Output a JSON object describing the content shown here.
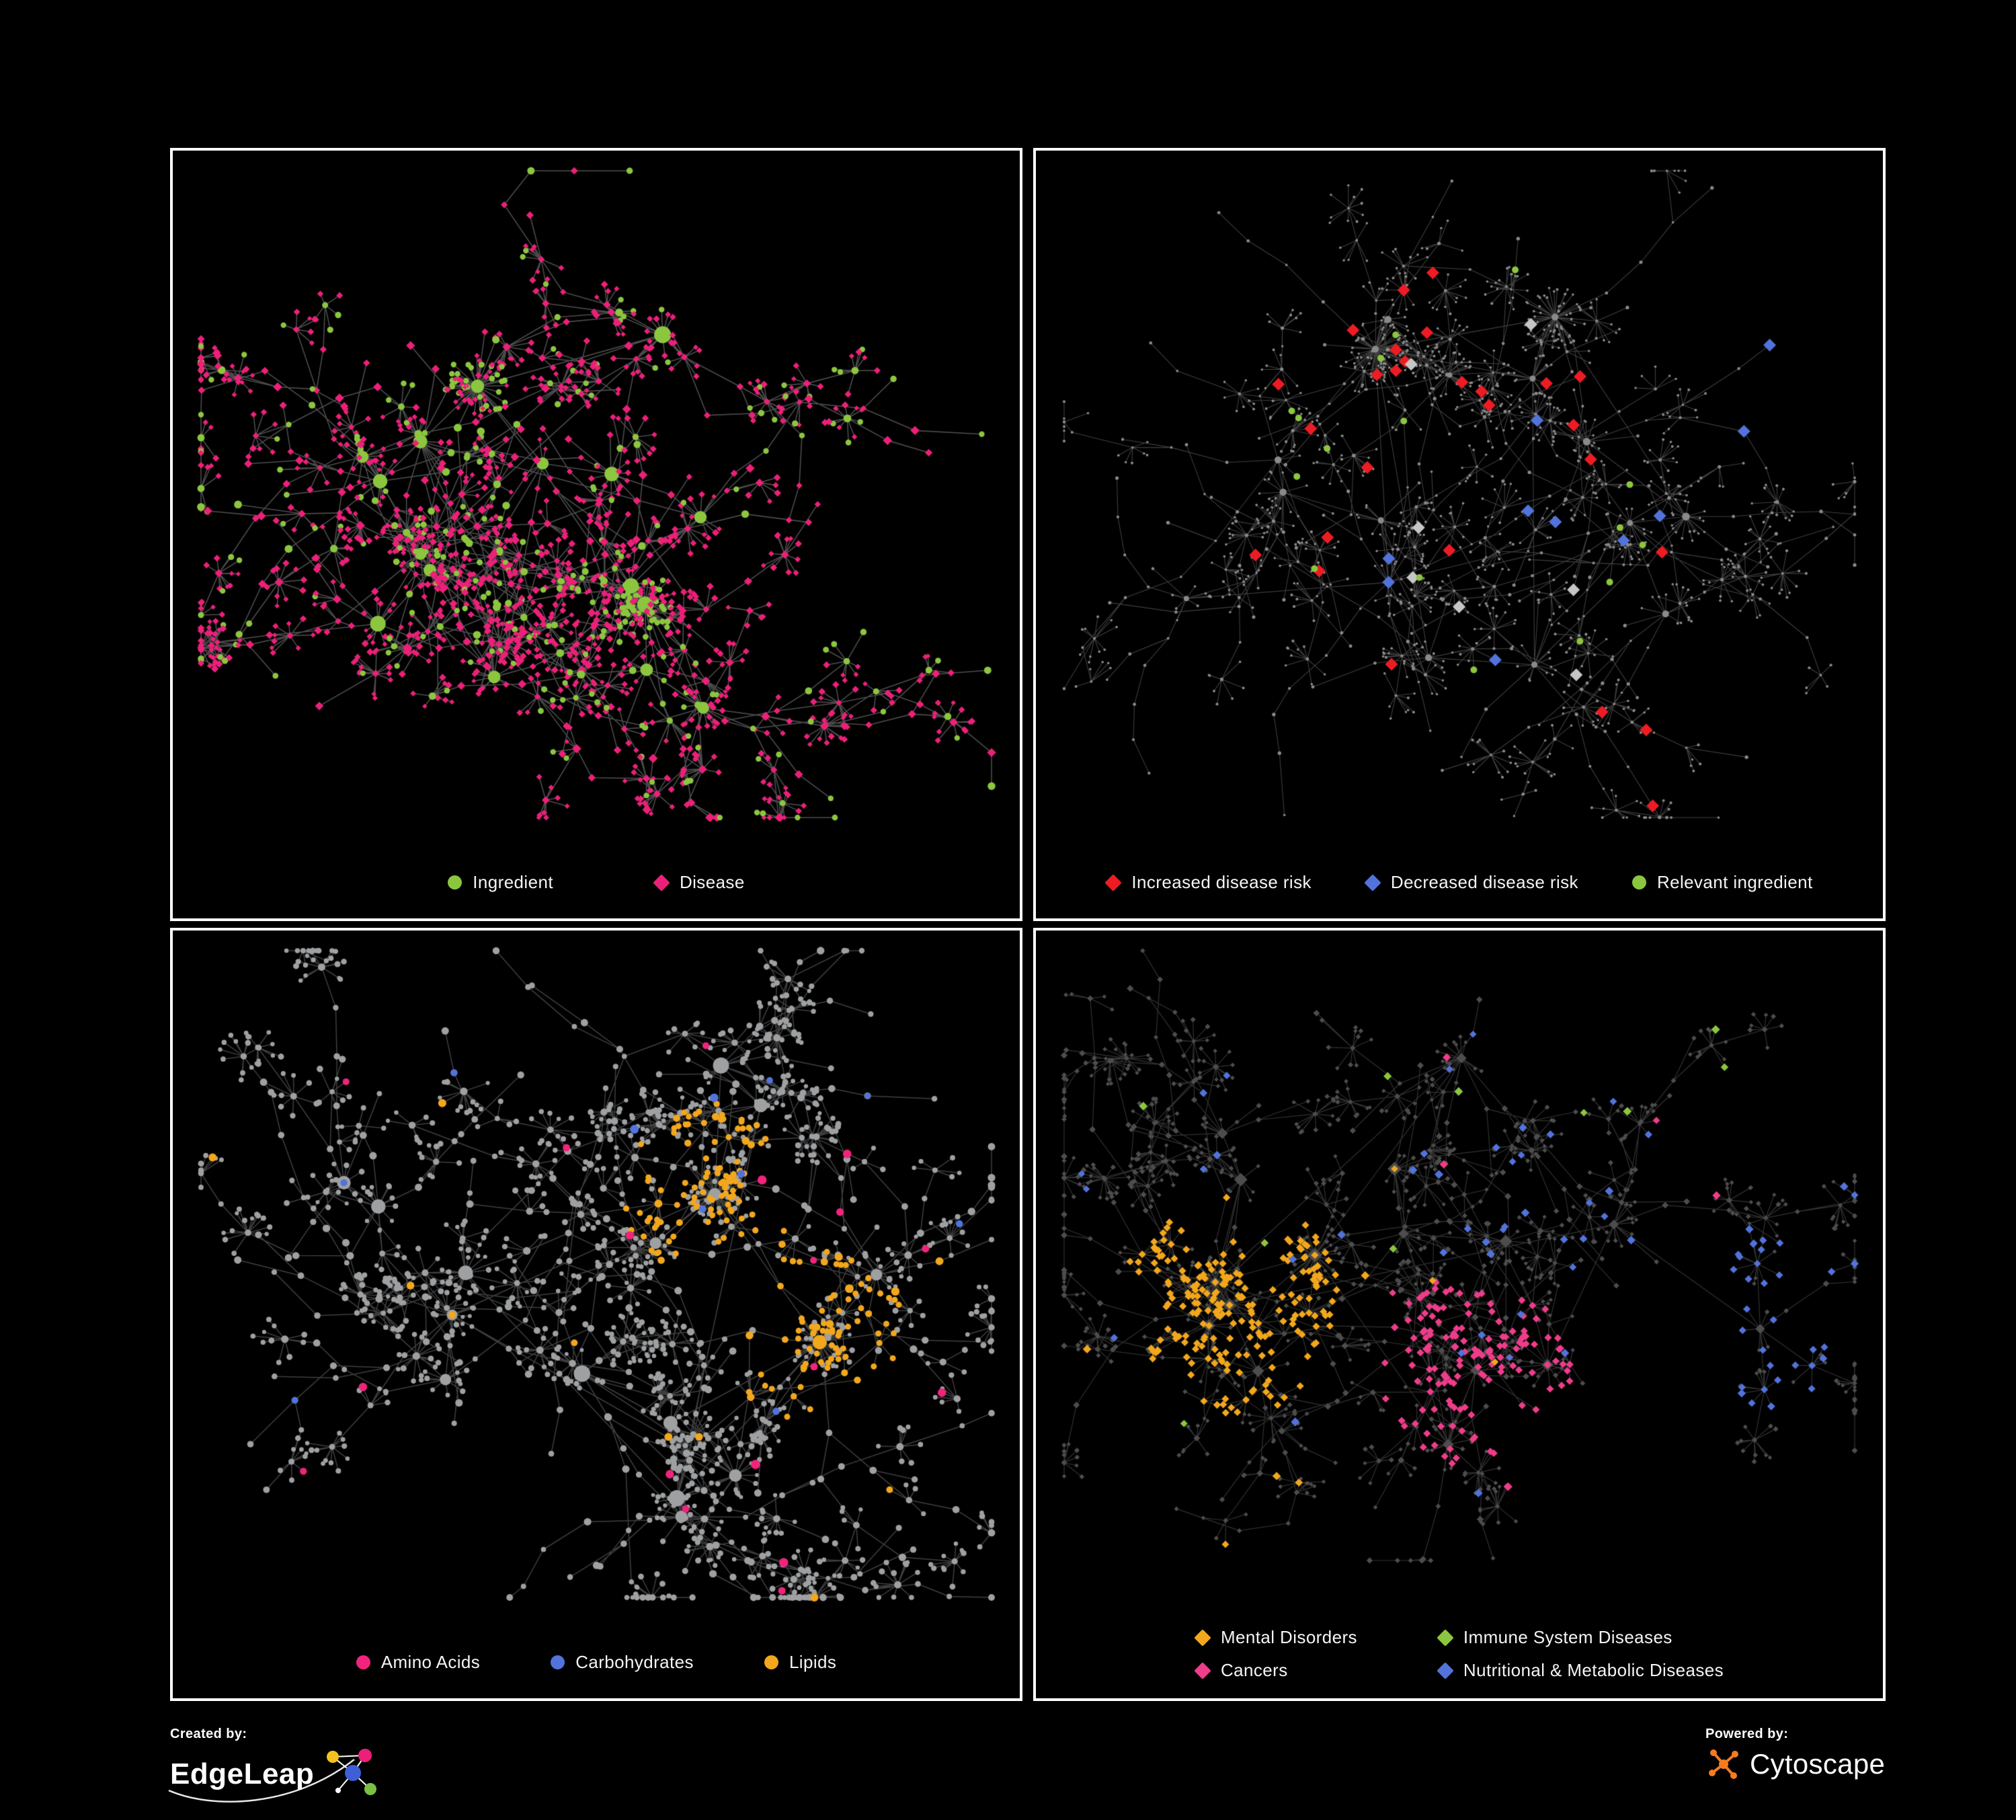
{
  "page": {
    "background": "#000000",
    "panel_border": "#ffffff"
  },
  "panels": [
    {
      "name": "ingredient-disease-network",
      "legend": [
        {
          "label": "Ingredient",
          "shape": "circle",
          "color": "#8cc63f"
        },
        {
          "label": "Disease",
          "shape": "diamond",
          "color": "#ec2079"
        }
      ],
      "network": {
        "seed": 1337,
        "style": "ingredient_disease",
        "edge_width": 1.6,
        "bottom_margin": 150,
        "colors": {
          "ingredient": "#8cc63f",
          "disease": "#ec2079",
          "edge": "rgba(152,152,152,0.5)"
        }
      }
    },
    {
      "name": "disease-risk-network",
      "legend": [
        {
          "label": "Increased disease risk",
          "shape": "diamond",
          "color": "#ed1c24"
        },
        {
          "label": "Decreased disease risk",
          "shape": "diamond",
          "color": "#5273db"
        },
        {
          "label": "Relevant ingredient",
          "shape": "circle",
          "color": "#8cc63f"
        }
      ],
      "network": {
        "seed": 2024,
        "style": "risk",
        "edge_width": 1.1,
        "bottom_margin": 150,
        "colors": {
          "increased": "#ed1c24",
          "decreased": "#5273db",
          "neutral": "#c6c6c6",
          "ingredient": "#8cc63f",
          "base": "#8a8a8a",
          "edge": "rgba(140,140,140,0.45)"
        }
      }
    },
    {
      "name": "macronutrient-network",
      "legend": [
        {
          "label": "Amino Acids",
          "shape": "circle",
          "color": "#f0247c"
        },
        {
          "label": "Carbohydrates",
          "shape": "circle",
          "color": "#5273db"
        },
        {
          "label": "Lipids",
          "shape": "circle",
          "color": "#f3a71c"
        }
      ],
      "network": {
        "seed": 7777,
        "style": "macronutrients",
        "edge_width": 1.5,
        "bottom_margin": 150,
        "colors": {
          "amino": "#f0247c",
          "carbs": "#5273db",
          "lipids": "#f3a71c",
          "base": "#9ea0a2",
          "edge": "rgba(150,150,150,0.42)"
        }
      }
    },
    {
      "name": "disease-class-network",
      "legend": [
        {
          "label": "Mental Disorders",
          "shape": "diamond",
          "color": "#f3a71c"
        },
        {
          "label": "Immune System Diseases",
          "shape": "diamond",
          "color": "#8cc63f"
        },
        {
          "label": "Cancers",
          "shape": "diamond",
          "color": "#ee3d8a"
        },
        {
          "label": "Nutritional & Metabolic Diseases",
          "shape": "diamond",
          "color": "#5273db"
        }
      ],
      "network": {
        "seed": 4242,
        "style": "disease_classes",
        "edge_width": 1.2,
        "bottom_margin": 205,
        "colors": {
          "mental": "#f3a71c",
          "immune": "#8cc63f",
          "cancers": "#ee3d8a",
          "nutritional": "#5273db",
          "base": "#4d4d4d",
          "edge": "rgba(132,132,132,0.38)"
        }
      }
    }
  ],
  "footer": {
    "created_by_label": "Created by:",
    "edgeleap_name": "EdgeLeap",
    "powered_by_label": "Powered by:",
    "cytoscape_name": "Cytoscape"
  }
}
